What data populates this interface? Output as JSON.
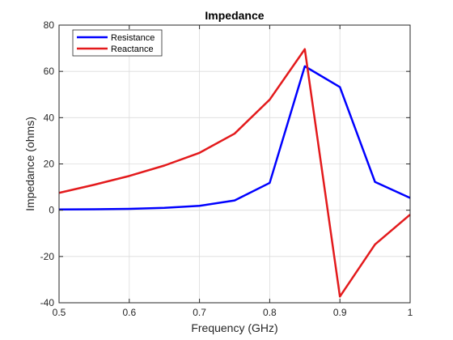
{
  "chart_data": {
    "type": "line",
    "title": "Impedance",
    "xlabel": "Frequency (GHz)",
    "ylabel": "Impedance (ohms)",
    "xlim": [
      0.5,
      1
    ],
    "ylim": [
      -40,
      80
    ],
    "xticks": [
      0.5,
      0.6,
      0.7,
      0.8,
      0.9,
      1
    ],
    "xtick_labels": [
      "0.5",
      "0.6",
      "0.7",
      "0.8",
      "0.9",
      "1"
    ],
    "yticks": [
      -40,
      -20,
      0,
      20,
      40,
      60,
      80
    ],
    "ytick_labels": [
      "-40",
      "-20",
      "0",
      "20",
      "40",
      "60",
      "80"
    ],
    "grid": true,
    "legend_position": "top-left",
    "x": [
      0.5,
      0.55,
      0.6,
      0.65,
      0.7,
      0.75,
      0.8,
      0.85,
      0.9,
      0.95,
      1.0
    ],
    "series": [
      {
        "name": "Resistance",
        "color": "#0000ff",
        "values": [
          0.3,
          0.4,
          0.6,
          1.0,
          1.9,
          4.2,
          11.8,
          62.2,
          53.2,
          12.2,
          5.3
        ]
      },
      {
        "name": "Reactance",
        "color": "#e31a1c",
        "values": [
          7.5,
          11.0,
          14.8,
          19.3,
          24.8,
          33.1,
          47.8,
          69.6,
          -37.3,
          -14.8,
          -1.9
        ]
      }
    ]
  }
}
